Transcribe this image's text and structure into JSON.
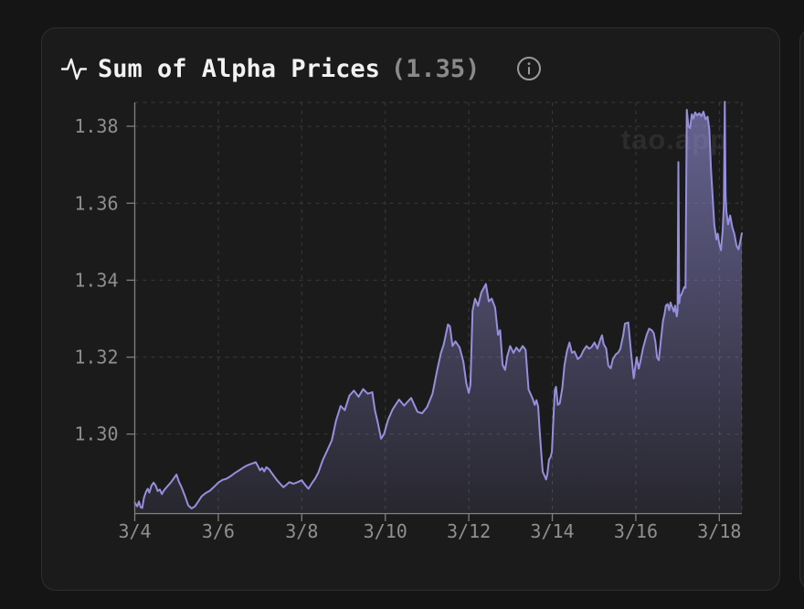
{
  "header": {
    "title": "Sum of Alpha Prices",
    "value": "(1.35)"
  },
  "watermark": "tao.app",
  "colors": {
    "page_bg": "#151515",
    "card_bg": "#1b1b1b",
    "card_border": "#2e2e2e",
    "title_text": "#f2f2f2",
    "muted_text": "#8a8a8a",
    "axis_line": "#808080",
    "axis_label": "#8f8f8f",
    "grid_line": "#3b3b3b",
    "line": "#968fdc",
    "fill_top": "rgba(150,144,220,0.62)",
    "fill_bottom": "rgba(150,144,220,0.10)",
    "watermark": "#2c2c2c",
    "icon": "#9a9a9a"
  },
  "chart_data": {
    "type": "area",
    "title": "Sum of Alpha Prices",
    "current_value": 1.35,
    "xlabel": "",
    "ylabel": "",
    "grid": true,
    "x_range_days": [
      4.0,
      18.54
    ],
    "y_range": [
      1.2795,
      1.3862
    ],
    "x_ticks": [
      {
        "day": 4,
        "label": "3/4"
      },
      {
        "day": 6,
        "label": "3/6"
      },
      {
        "day": 8,
        "label": "3/8"
      },
      {
        "day": 10,
        "label": "3/10"
      },
      {
        "day": 12,
        "label": "3/12"
      },
      {
        "day": 14,
        "label": "3/14"
      },
      {
        "day": 16,
        "label": "3/16"
      },
      {
        "day": 18,
        "label": "3/18"
      }
    ],
    "y_ticks": [
      {
        "value": 1.38,
        "label": "1.38"
      },
      {
        "value": 1.36,
        "label": "1.36"
      },
      {
        "value": 1.34,
        "label": "1.34"
      },
      {
        "value": 1.32,
        "label": "1.32"
      },
      {
        "value": 1.3,
        "label": "1.30"
      }
    ],
    "series": [
      {
        "name": "Sum of Alpha Prices",
        "points": [
          [
            4.0,
            1.2822
          ],
          [
            4.06,
            1.2812
          ],
          [
            4.1,
            1.2825
          ],
          [
            4.14,
            1.281
          ],
          [
            4.18,
            1.2808
          ],
          [
            4.22,
            1.2835
          ],
          [
            4.27,
            1.285
          ],
          [
            4.31,
            1.2858
          ],
          [
            4.35,
            1.2848
          ],
          [
            4.4,
            1.2866
          ],
          [
            4.45,
            1.2874
          ],
          [
            4.5,
            1.2866
          ],
          [
            4.55,
            1.2852
          ],
          [
            4.6,
            1.2856
          ],
          [
            4.65,
            1.2844
          ],
          [
            4.7,
            1.2854
          ],
          [
            4.78,
            1.2864
          ],
          [
            4.86,
            1.2874
          ],
          [
            4.93,
            1.2884
          ],
          [
            5.0,
            1.2895
          ],
          [
            5.05,
            1.2878
          ],
          [
            5.12,
            1.2862
          ],
          [
            5.2,
            1.284
          ],
          [
            5.28,
            1.2815
          ],
          [
            5.36,
            1.2807
          ],
          [
            5.44,
            1.2812
          ],
          [
            5.52,
            1.2825
          ],
          [
            5.6,
            1.2838
          ],
          [
            5.7,
            1.2847
          ],
          [
            5.8,
            1.2853
          ],
          [
            5.9,
            1.2863
          ],
          [
            6.0,
            1.2874
          ],
          [
            6.1,
            1.2881
          ],
          [
            6.2,
            1.2884
          ],
          [
            6.3,
            1.2891
          ],
          [
            6.4,
            1.2899
          ],
          [
            6.5,
            1.2906
          ],
          [
            6.6,
            1.2913
          ],
          [
            6.7,
            1.2919
          ],
          [
            6.8,
            1.2923
          ],
          [
            6.9,
            1.2927
          ],
          [
            6.95,
            1.2917
          ],
          [
            7.0,
            1.2906
          ],
          [
            7.05,
            1.2912
          ],
          [
            7.1,
            1.2903
          ],
          [
            7.15,
            1.2914
          ],
          [
            7.22,
            1.2908
          ],
          [
            7.3,
            1.2896
          ],
          [
            7.4,
            1.2881
          ],
          [
            7.5,
            1.2869
          ],
          [
            7.56,
            1.2862
          ],
          [
            7.62,
            1.2867
          ],
          [
            7.7,
            1.2875
          ],
          [
            7.8,
            1.2871
          ],
          [
            7.9,
            1.2875
          ],
          [
            8.0,
            1.288
          ],
          [
            8.08,
            1.2868
          ],
          [
            8.16,
            1.2858
          ],
          [
            8.24,
            1.2872
          ],
          [
            8.32,
            1.2884
          ],
          [
            8.4,
            1.2901
          ],
          [
            8.5,
            1.2932
          ],
          [
            8.6,
            1.2955
          ],
          [
            8.72,
            1.2984
          ],
          [
            8.82,
            1.3035
          ],
          [
            8.93,
            1.3073
          ],
          [
            9.03,
            1.3062
          ],
          [
            9.14,
            1.31
          ],
          [
            9.25,
            1.3113
          ],
          [
            9.36,
            1.3097
          ],
          [
            9.47,
            1.3117
          ],
          [
            9.58,
            1.3105
          ],
          [
            9.69,
            1.3109
          ],
          [
            9.75,
            1.3063
          ],
          [
            9.82,
            1.303
          ],
          [
            9.9,
            1.2988
          ],
          [
            9.97,
            1.3
          ],
          [
            10.07,
            1.3038
          ],
          [
            10.18,
            1.3065
          ],
          [
            10.33,
            1.309
          ],
          [
            10.45,
            1.3074
          ],
          [
            10.62,
            1.3094
          ],
          [
            10.77,
            1.3058
          ],
          [
            10.88,
            1.3054
          ],
          [
            11.0,
            1.307
          ],
          [
            11.13,
            1.3105
          ],
          [
            11.24,
            1.3165
          ],
          [
            11.33,
            1.321
          ],
          [
            11.4,
            1.3233
          ],
          [
            11.5,
            1.3285
          ],
          [
            11.55,
            1.328
          ],
          [
            11.61,
            1.3229
          ],
          [
            11.68,
            1.3241
          ],
          [
            11.78,
            1.3225
          ],
          [
            11.87,
            1.3188
          ],
          [
            11.94,
            1.3132
          ],
          [
            12.0,
            1.3107
          ],
          [
            12.04,
            1.3128
          ],
          [
            12.09,
            1.332
          ],
          [
            12.15,
            1.3352
          ],
          [
            12.22,
            1.3333
          ],
          [
            12.3,
            1.3368
          ],
          [
            12.41,
            1.339
          ],
          [
            12.48,
            1.3345
          ],
          [
            12.55,
            1.3352
          ],
          [
            12.63,
            1.3329
          ],
          [
            12.7,
            1.3258
          ],
          [
            12.75,
            1.327
          ],
          [
            12.81,
            1.318
          ],
          [
            12.87,
            1.3167
          ],
          [
            12.92,
            1.3202
          ],
          [
            12.99,
            1.3229
          ],
          [
            13.07,
            1.3211
          ],
          [
            13.14,
            1.3225
          ],
          [
            13.21,
            1.3215
          ],
          [
            13.29,
            1.3229
          ],
          [
            13.36,
            1.3219
          ],
          [
            13.43,
            1.3116
          ],
          [
            13.48,
            1.3104
          ],
          [
            13.53,
            1.3092
          ],
          [
            13.58,
            1.3076
          ],
          [
            13.62,
            1.3088
          ],
          [
            13.66,
            1.3072
          ],
          [
            13.7,
            1.3005
          ],
          [
            13.74,
            1.2946
          ],
          [
            13.77,
            1.2902
          ],
          [
            13.81,
            1.2893
          ],
          [
            13.85,
            1.2882
          ],
          [
            13.88,
            1.2894
          ],
          [
            13.92,
            1.2933
          ],
          [
            13.96,
            1.2941
          ],
          [
            13.99,
            1.2954
          ],
          [
            14.02,
            1.3024
          ],
          [
            14.06,
            1.3115
          ],
          [
            14.09,
            1.3123
          ],
          [
            14.13,
            1.3076
          ],
          [
            14.18,
            1.308
          ],
          [
            14.24,
            1.312
          ],
          [
            14.29,
            1.3178
          ],
          [
            14.35,
            1.3215
          ],
          [
            14.41,
            1.3238
          ],
          [
            14.47,
            1.3211
          ],
          [
            14.53,
            1.3215
          ],
          [
            14.61,
            1.3195
          ],
          [
            14.68,
            1.3202
          ],
          [
            14.75,
            1.3218
          ],
          [
            14.82,
            1.3229
          ],
          [
            14.88,
            1.3222
          ],
          [
            14.94,
            1.3226
          ],
          [
            15.01,
            1.3238
          ],
          [
            15.08,
            1.3222
          ],
          [
            15.15,
            1.3246
          ],
          [
            15.19,
            1.3257
          ],
          [
            15.23,
            1.3234
          ],
          [
            15.29,
            1.3222
          ],
          [
            15.34,
            1.3178
          ],
          [
            15.4,
            1.3171
          ],
          [
            15.45,
            1.3195
          ],
          [
            15.52,
            1.3207
          ],
          [
            15.58,
            1.3212
          ],
          [
            15.63,
            1.3222
          ],
          [
            15.7,
            1.3258
          ],
          [
            15.74,
            1.3287
          ],
          [
            15.82,
            1.329
          ],
          [
            15.88,
            1.322
          ],
          [
            15.95,
            1.3145
          ],
          [
            16.02,
            1.32
          ],
          [
            16.07,
            1.317
          ],
          [
            16.11,
            1.3188
          ],
          [
            16.17,
            1.3222
          ],
          [
            16.26,
            1.3258
          ],
          [
            16.32,
            1.3274
          ],
          [
            16.39,
            1.3269
          ],
          [
            16.43,
            1.3262
          ],
          [
            16.47,
            1.3239
          ],
          [
            16.51,
            1.3199
          ],
          [
            16.55,
            1.3192
          ],
          [
            16.6,
            1.3243
          ],
          [
            16.65,
            1.3293
          ],
          [
            16.69,
            1.3314
          ],
          [
            16.72,
            1.3334
          ],
          [
            16.76,
            1.3338
          ],
          [
            16.8,
            1.3322
          ],
          [
            16.83,
            1.3342
          ],
          [
            16.87,
            1.333
          ],
          [
            16.91,
            1.3318
          ],
          [
            16.94,
            1.3334
          ],
          [
            16.98,
            1.3306
          ],
          [
            17.0,
            1.332
          ],
          [
            17.02,
            1.3707
          ],
          [
            17.04,
            1.334
          ],
          [
            17.06,
            1.3358
          ],
          [
            17.09,
            1.3362
          ],
          [
            17.13,
            1.3374
          ],
          [
            17.16,
            1.3382
          ],
          [
            17.19,
            1.338
          ],
          [
            17.22,
            1.3843
          ],
          [
            17.26,
            1.38
          ],
          [
            17.3,
            1.3795
          ],
          [
            17.34,
            1.3831
          ],
          [
            17.38,
            1.382
          ],
          [
            17.42,
            1.3836
          ],
          [
            17.47,
            1.3828
          ],
          [
            17.52,
            1.3834
          ],
          [
            17.57,
            1.3826
          ],
          [
            17.62,
            1.3838
          ],
          [
            17.67,
            1.3818
          ],
          [
            17.72,
            1.3825
          ],
          [
            17.76,
            1.3791
          ],
          [
            17.8,
            1.3688
          ],
          [
            17.84,
            1.3617
          ],
          [
            17.88,
            1.3545
          ],
          [
            17.93,
            1.3506
          ],
          [
            17.96,
            1.3521
          ],
          [
            18.0,
            1.3494
          ],
          [
            18.04,
            1.3478
          ],
          [
            18.08,
            1.3529
          ],
          [
            18.11,
            1.36
          ],
          [
            18.13,
            1.3864
          ],
          [
            18.15,
            1.362
          ],
          [
            18.17,
            1.3577
          ],
          [
            18.21,
            1.3545
          ],
          [
            18.26,
            1.3568
          ],
          [
            18.31,
            1.3538
          ],
          [
            18.36,
            1.352
          ],
          [
            18.41,
            1.349
          ],
          [
            18.46,
            1.348
          ],
          [
            18.5,
            1.35
          ],
          [
            18.54,
            1.3522
          ]
        ]
      }
    ]
  }
}
